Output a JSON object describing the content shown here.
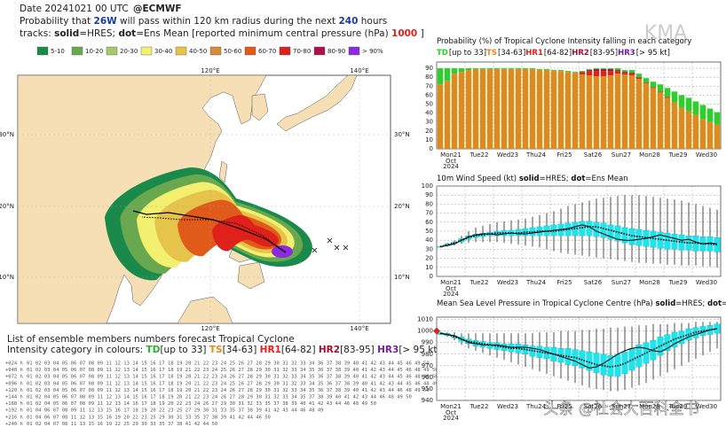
{
  "header": {
    "date": "Date 20241021 00 UTC",
    "source": "@ECMWF",
    "line2": [
      "Probability that ",
      "26W",
      " will pass within 120 km radius during the next ",
      "240",
      " hours"
    ],
    "line3": [
      "tracks: ",
      "solid",
      "=HRES; ",
      "dot",
      "=Ens Mean [reported minimum central pressure (hPa) ",
      "1000",
      " ]"
    ]
  },
  "map_legend": [
    {
      "label": "5-10",
      "color": "#1a8a4a"
    },
    {
      "label": "10-20",
      "color": "#6aa84f"
    },
    {
      "label": "20-30",
      "color": "#a6c96a"
    },
    {
      "label": "30-40",
      "color": "#f2f06e"
    },
    {
      "label": "40-50",
      "color": "#e6c34a"
    },
    {
      "label": "50-60",
      "color": "#d98b3a"
    },
    {
      "label": "60-70",
      "color": "#e05a1a"
    },
    {
      "label": "70-80",
      "color": "#e0201a"
    },
    {
      "label": "80-90",
      "color": "#b01050"
    },
    {
      "label": "> 90%",
      "color": "#8a2be2"
    }
  ],
  "map": {
    "lon_labels": [
      "120°E",
      "140°E"
    ],
    "lat_labels": [
      "30°N",
      "20°N",
      "10°N"
    ]
  },
  "ensemble_list": {
    "title": "List of ensemble members numbers forecast Tropical Cyclone",
    "legend": [
      [
        "Intensity category in colours: ",
        "#222"
      ],
      [
        "TD",
        "#2bb02b"
      ],
      [
        "[up to 33] ",
        "#222"
      ],
      [
        "TS",
        "#e08a1a"
      ],
      [
        "[34-63] ",
        "#222"
      ],
      [
        "HR1",
        "#e0201a"
      ],
      [
        "[64-82] ",
        "#222"
      ],
      [
        "HR2",
        "#a01030"
      ],
      [
        "[83-95] ",
        "#222"
      ],
      [
        "HR3",
        "#7020a0"
      ],
      [
        "[> 95 kt]",
        "#222"
      ]
    ],
    "rows": [
      {
        "label": "+024 h",
        "members": "01 02 03 04 05 06 07 08 09 11 12 13 14 15 16 17 18 19 20 21 22 23 24 25 26 27 28 29 30 31 32 33 34 36 37 38 39 40 41 42 43 44 45 46 49 50"
      },
      {
        "label": "+048 h",
        "members": "01 02 03 04 05 06 07 08 09 11 12 13 14 15 16 17 18 19 21 22 23 24 25 26 27 28 29 30 31 32 33 34 35 36 37 38 39 40 41 42 43 44 45 46 48 49 50"
      },
      {
        "label": "+072 h",
        "members": "01 02 03 04 05 06 07 08 09 11 12 13 14 15 16 17 18 19 20 21 22 23 24 26 27 28 29 30 31 32 33 34 35 36 37 38 39 40 41 42 43 44 45 46 48 49 50"
      },
      {
        "label": "+096 h",
        "members": "01 02 03 04 05 06 07 08 09 11 12 13 14 15 16 17 18 19 20 21 22 23 24 25 26 27 28 29 30 31 32 33 34 35 36 37 38 39 40 41 42 43 44 45 46 48 49 50"
      },
      {
        "label": "+120 h",
        "members": "01 02 03 04 05 06 07 08 09 11 12 13 14 15 16 17 18 19 20 21 22 23 24 26 27 28 29 30 31 32 33 34 35 36 37 38 39 40 41 42 43 44 46 48 49 50"
      },
      {
        "label": "+144 h",
        "members": "01 02 04 05 06 07 08 09 11 12 13 14 15 16 17 18 19 20 21 22 23 24 26 27 28 29 30 31 32 33 34 35 37 38 39 40 41 42 43 44 46 48 49 50"
      },
      {
        "label": "+168 h",
        "members": "01 02 04 05 06 07 08 09 11 12 13 14 16 17 18 19 20 22 23 24 26 27 29 30 31 32 33 35 37 38 39 40 41 42 43 44 46 48 49 50"
      },
      {
        "label": "+192 h",
        "members": "01 04 06 07 08 09 11 12 13 15 16 17 18 19 20 22 23 25 27 29 30 31 33 35 37 38 39 41 42 43 44 46 48 49"
      },
      {
        "label": "+216 h",
        "members": "01 04 06 07 08 11 12 13 15 16 19 20 22 23 25 29 30 31 33 35 37 38 39 41 42 44 46 50"
      },
      {
        "label": "+240 h",
        "members": "01 02 04 07 08 11 13 15 16 19 22 25 29 30 33 35 37 38 41 42 44 50"
      }
    ]
  },
  "watermarks": [
    "KMA",
    "头条 @社会大百科全书"
  ],
  "chart_data": [
    {
      "type": "bar",
      "stacked": true,
      "title": [
        "Probability (%) of Tropical Cyclone Intensity falling in each category"
      ],
      "categories": [
        "Mon21",
        null,
        null,
        null,
        "Tue22",
        null,
        null,
        null,
        "Wed23",
        null,
        null,
        null,
        "Thu24",
        null,
        null,
        null,
        "Fri25",
        null,
        null,
        null,
        "Sat26",
        null,
        null,
        null,
        "Sun27",
        null,
        null,
        null,
        "Mon28",
        null,
        null,
        null,
        "Tue29",
        null,
        null,
        null,
        "Wed30",
        null,
        null,
        null
      ],
      "first_category_sub": [
        "Oct",
        "2024"
      ],
      "ylim": [
        0,
        97
      ],
      "yticks": [
        0,
        10,
        20,
        30,
        40,
        50,
        60,
        70,
        80,
        90
      ],
      "grid": true,
      "series": [
        {
          "name": "TS",
          "range": "[34-63]",
          "color": "#e08a1a",
          "values": [
            72,
            76,
            84,
            86,
            88,
            89,
            89,
            89,
            89,
            89,
            89,
            89,
            89,
            89,
            88,
            88,
            87,
            87,
            86,
            85,
            83,
            82,
            81,
            81,
            82,
            84,
            83,
            82,
            78,
            73,
            68,
            63,
            57,
            52,
            46,
            42,
            38,
            33,
            30,
            27
          ]
        },
        {
          "name": "HR1",
          "range": "[64-82]",
          "color": "#e0201a",
          "values": [
            0,
            0,
            0,
            0,
            0,
            0,
            0,
            0,
            0,
            0,
            0,
            0,
            0,
            0,
            0,
            0,
            0,
            0,
            0,
            0,
            3,
            5,
            6,
            6,
            5,
            3,
            2,
            2,
            2,
            1,
            1,
            1,
            1,
            0,
            0,
            0,
            0,
            0,
            0,
            0
          ]
        },
        {
          "name": "HR2",
          "range": "[83-95]",
          "color": "#a01030",
          "values": [
            0,
            0,
            0,
            0,
            0,
            0,
            0,
            0,
            0,
            0,
            0,
            0,
            0,
            0,
            0,
            0,
            0,
            0,
            0,
            0,
            0,
            1,
            2,
            2,
            2,
            1,
            1,
            1,
            0,
            0,
            0,
            0,
            0,
            0,
            0,
            0,
            0,
            0,
            0,
            0
          ]
        },
        {
          "name": "HR3",
          "range": "[> 95 kt]",
          "color": "#7020a0",
          "values": [
            0,
            0,
            0,
            0,
            0,
            0,
            0,
            0,
            0,
            0,
            0,
            0,
            0,
            0,
            0,
            0,
            0,
            0,
            0,
            0,
            0,
            0,
            0,
            0,
            0,
            0,
            0,
            0,
            0,
            0,
            0,
            0,
            0,
            0,
            0,
            0,
            0,
            0,
            0,
            0
          ]
        },
        {
          "name": "TD",
          "range": "[up to 33]",
          "color": "#2bd02b",
          "values": [
            18,
            14,
            6,
            4,
            2,
            1,
            1,
            1,
            1,
            1,
            1,
            1,
            1,
            1,
            1,
            1,
            1,
            1,
            1,
            1,
            1,
            1,
            1,
            1,
            1,
            2,
            2,
            3,
            4,
            5,
            6,
            8,
            10,
            12,
            14,
            15,
            15,
            16,
            15,
            14
          ]
        }
      ],
      "legend_order": [
        "TD",
        "TS",
        "HR1",
        "HR2",
        "HR3"
      ]
    },
    {
      "type": "box",
      "title": [
        "10m Wind Speed (kt) ",
        "solid",
        "=HRES; ",
        "dot",
        "=Ens Mean"
      ],
      "categories": [
        "Mon21",
        null,
        null,
        null,
        "Tue22",
        null,
        null,
        null,
        "Wed23",
        null,
        null,
        null,
        "Thu24",
        null,
        null,
        null,
        "Fri25",
        null,
        null,
        null,
        "Sat26",
        null,
        null,
        null,
        "Sun27",
        null,
        null,
        null,
        "Mon28",
        null,
        null,
        null,
        "Tue29",
        null,
        null,
        null,
        "Wed30",
        null,
        null,
        null
      ],
      "first_category_sub": [
        "Oct",
        "2024"
      ],
      "ylim": [
        0,
        100
      ],
      "yticks": [
        0,
        10,
        20,
        30,
        40,
        50,
        60,
        70,
        80,
        90,
        100
      ],
      "grid": true,
      "box_color": "#19e6ee",
      "low": [
        32,
        33,
        34,
        36,
        37,
        38,
        38,
        38,
        38,
        37,
        36,
        35,
        34,
        33,
        32,
        30,
        28,
        26,
        25,
        24,
        23,
        22,
        21,
        20,
        19,
        18,
        17,
        16,
        15,
        15,
        14,
        14,
        13,
        13,
        12,
        12,
        12,
        11,
        11,
        10
      ],
      "q1": [
        33,
        34,
        36,
        38,
        41,
        43,
        44,
        45,
        45,
        45,
        45,
        45,
        45,
        45,
        45,
        45,
        45,
        45,
        45,
        45,
        45,
        45,
        44,
        43,
        41,
        39,
        37,
        35,
        34,
        33,
        32,
        31,
        30,
        30,
        29,
        29,
        28,
        28,
        28,
        27
      ],
      "q3": [
        33,
        36,
        38,
        42,
        45,
        47,
        48,
        49,
        50,
        51,
        51,
        52,
        53,
        54,
        55,
        56,
        57,
        58,
        59,
        60,
        61,
        61,
        60,
        59,
        57,
        56,
        54,
        53,
        52,
        51,
        50,
        49,
        48,
        47,
        46,
        45,
        45,
        44,
        44,
        43
      ],
      "high": [
        34,
        37,
        40,
        45,
        50,
        54,
        56,
        58,
        60,
        61,
        62,
        63,
        64,
        66,
        68,
        70,
        72,
        75,
        78,
        80,
        82,
        84,
        86,
        87,
        88,
        89,
        90,
        90,
        90,
        89,
        88,
        87,
        86,
        85,
        84,
        82,
        80,
        78,
        76,
        74
      ],
      "series": [
        {
          "name": "HRES",
          "color": "#000",
          "dash": false,
          "values": [
            33,
            34,
            36,
            40,
            44,
            46,
            47,
            47,
            46,
            47,
            48,
            47,
            47,
            48,
            49,
            50,
            51,
            52,
            53,
            55,
            57,
            55,
            50,
            47,
            44,
            41,
            40,
            40,
            41,
            42,
            44,
            46,
            44,
            42,
            40,
            41,
            38,
            36,
            37,
            36
          ]
        },
        {
          "name": "Ens Mean",
          "color": "#000",
          "dash": true,
          "values": [
            33,
            35,
            37,
            40,
            43,
            45,
            46,
            47,
            48,
            48,
            48,
            48,
            49,
            49,
            50,
            50,
            50,
            51,
            52,
            53,
            54,
            55,
            55,
            53,
            51,
            49,
            47,
            45,
            44,
            43,
            42,
            41,
            40,
            39,
            38,
            37,
            37,
            36,
            36,
            35
          ]
        }
      ]
    },
    {
      "type": "box",
      "title": [
        "Mean Sea Level Pressure in Tropical Cyclone Centre (hPa) ",
        "solid",
        "=HRES; ",
        "dot",
        "=Ens Mean"
      ],
      "categories": [
        "Mon21",
        null,
        null,
        null,
        "Tue22",
        null,
        null,
        null,
        "Wed23",
        null,
        null,
        null,
        "Thu24",
        null,
        null,
        null,
        "Fri25",
        null,
        null,
        null,
        "Sat26",
        null,
        null,
        null,
        "Sun27",
        null,
        null,
        null,
        "Mon28",
        null,
        null,
        null,
        "Tue29",
        null,
        null,
        null,
        "Wed30",
        null,
        null,
        null
      ],
      "first_category_sub": [
        "Oct",
        "2024"
      ],
      "ylim": [
        940,
        1012
      ],
      "yticks": [
        940,
        950,
        960,
        970,
        980,
        990,
        1000,
        1010
      ],
      "grid": true,
      "box_color": "#19e6ee",
      "reported": 1000,
      "reported_color": "#e0201a",
      "low": [
        997,
        995,
        992,
        988,
        985,
        983,
        981,
        979,
        977,
        975,
        973,
        971,
        969,
        967,
        965,
        963,
        961,
        959,
        957,
        955,
        953,
        951,
        950,
        949,
        948,
        948,
        949,
        951,
        953,
        955,
        958,
        961,
        964,
        967,
        970,
        973,
        976,
        979,
        982,
        985
      ],
      "q1": [
        997,
        996,
        994,
        991,
        989,
        987,
        986,
        985,
        984,
        983,
        982,
        981,
        980,
        978,
        977,
        976,
        974,
        973,
        971,
        970,
        968,
        966,
        964,
        962,
        961,
        961,
        963,
        966,
        969,
        972,
        975,
        979,
        983,
        986,
        989,
        992,
        994,
        996,
        997,
        998
      ],
      "q3": [
        999,
        998,
        996,
        995,
        993,
        992,
        991,
        990,
        990,
        989,
        989,
        989,
        988,
        987,
        987,
        986,
        986,
        985,
        985,
        984,
        983,
        982,
        981,
        980,
        979,
        980,
        982,
        985,
        988,
        990,
        992,
        995,
        997,
        999,
        1000,
        1002,
        1003,
        1004,
        1005,
        1006
      ],
      "high": [
        999,
        999,
        999,
        998,
        998,
        998,
        998,
        998,
        998,
        998,
        998,
        998,
        998,
        998,
        999,
        999,
        999,
        1000,
        1000,
        1000,
        1001,
        1001,
        1002,
        1002,
        1003,
        1003,
        1004,
        1004,
        1005,
        1005,
        1006,
        1006,
        1006,
        1007,
        1007,
        1007,
        1008,
        1008,
        1008,
        1008
      ],
      "series": [
        {
          "name": "HRES",
          "color": "#000",
          "dash": false,
          "values": [
            998,
            997,
            996,
            993,
            990,
            989,
            988,
            988,
            988,
            987,
            986,
            986,
            986,
            985,
            984,
            982,
            980,
            978,
            976,
            974,
            971,
            968,
            969,
            972,
            976,
            980,
            983,
            985,
            986,
            985,
            983,
            982,
            985,
            989,
            992,
            995,
            997,
            999,
            1001,
            1002
          ]
        },
        {
          "name": "Ens Mean",
          "color": "#000",
          "dash": true,
          "values": [
            998,
            997,
            995,
            993,
            991,
            990,
            989,
            988,
            987,
            986,
            985,
            985,
            984,
            983,
            982,
            981,
            980,
            979,
            978,
            977,
            975,
            973,
            971,
            970,
            969,
            970,
            972,
            975,
            978,
            981,
            984,
            987,
            990,
            993,
            995,
            997,
            999,
            1000,
            1001,
            1002
          ]
        }
      ]
    }
  ]
}
